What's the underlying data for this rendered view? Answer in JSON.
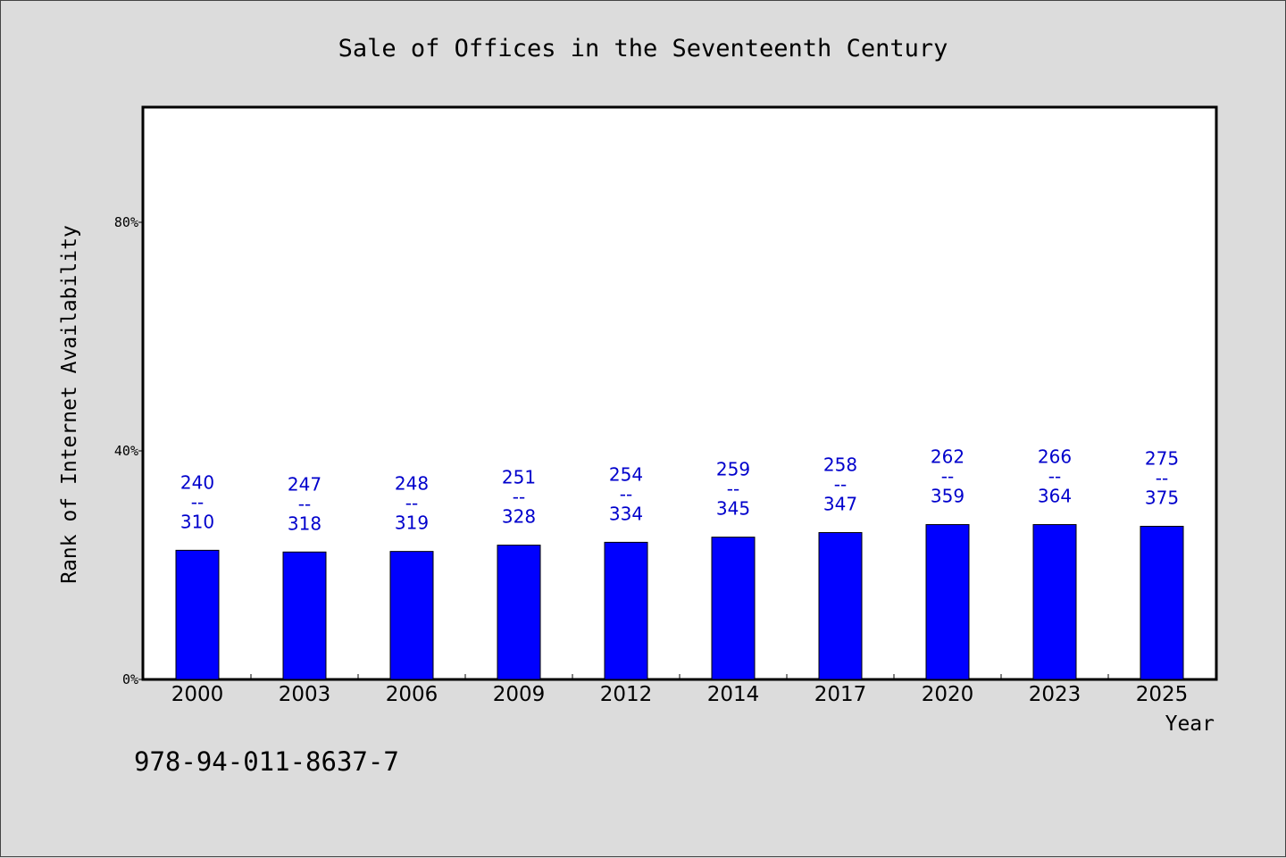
{
  "chart_data": {
    "type": "bar",
    "title": "Sale of Offices in the Seventeenth Century",
    "xlabel": "Year",
    "ylabel": "Rank of Internet Availability",
    "categories": [
      "2000",
      "2003",
      "2006",
      "2009",
      "2012",
      "2014",
      "2017",
      "2020",
      "2023",
      "2025"
    ],
    "values": [
      22.6,
      22.3,
      22.4,
      23.5,
      24.0,
      24.9,
      25.7,
      27.1,
      27.1,
      26.8
    ],
    "data_labels_top": [
      "240",
      "247",
      "248",
      "251",
      "254",
      "259",
      "258",
      "262",
      "266",
      "275"
    ],
    "data_labels_bottom": [
      "310",
      "318",
      "319",
      "328",
      "334",
      "345",
      "347",
      "359",
      "364",
      "375"
    ],
    "label_separator": "--",
    "ylim": [
      0,
      100
    ],
    "yticks": [
      0,
      40,
      80
    ],
    "ytick_labels": [
      "0%",
      "40%",
      "80%"
    ],
    "bar_color": "#0000ff",
    "label_color": "#0000cc",
    "grid": false,
    "legend": "none"
  },
  "footer": {
    "isbn": "978-94-011-8637-7"
  }
}
